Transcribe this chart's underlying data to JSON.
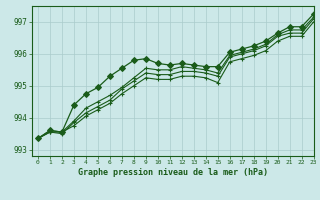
{
  "title": "Graphe pression niveau de la mer (hPa)",
  "background_color": "#cce8e8",
  "grid_color": "#aacccc",
  "line_color": "#1a5c1a",
  "xlim": [
    -0.5,
    23
  ],
  "ylim": [
    992.8,
    997.5
  ],
  "yticks": [
    993,
    994,
    995,
    996,
    997
  ],
  "xticks": [
    0,
    1,
    2,
    3,
    4,
    5,
    6,
    7,
    8,
    9,
    10,
    11,
    12,
    13,
    14,
    15,
    16,
    17,
    18,
    19,
    20,
    21,
    22,
    23
  ],
  "series": [
    [
      993.35,
      993.55,
      993.55,
      993.75,
      994.05,
      994.25,
      994.45,
      994.75,
      995.0,
      995.25,
      995.2,
      995.2,
      995.3,
      995.3,
      995.25,
      995.1,
      995.75,
      995.85,
      995.95,
      996.1,
      996.4,
      996.55,
      996.55,
      997.0
    ],
    [
      993.35,
      993.55,
      993.5,
      993.85,
      994.15,
      994.35,
      994.55,
      994.9,
      995.15,
      995.4,
      995.35,
      995.35,
      995.45,
      995.45,
      995.4,
      995.3,
      995.9,
      996.0,
      996.1,
      996.25,
      996.55,
      996.65,
      996.65,
      997.1
    ],
    [
      993.35,
      993.6,
      993.55,
      993.9,
      994.3,
      994.5,
      994.7,
      994.95,
      995.25,
      995.55,
      995.5,
      995.5,
      995.6,
      995.55,
      995.5,
      995.4,
      995.95,
      996.05,
      996.15,
      996.3,
      996.6,
      996.75,
      996.75,
      997.15
    ],
    [
      993.35,
      993.6,
      993.55,
      994.4,
      994.75,
      994.95,
      995.3,
      995.55,
      995.8,
      995.85,
      995.7,
      995.65,
      995.7,
      995.65,
      995.6,
      995.6,
      996.05,
      996.15,
      996.25,
      996.4,
      996.65,
      996.85,
      996.85,
      997.25
    ]
  ],
  "marker_sizes": [
    2.5,
    2.5,
    2.5,
    3.0
  ],
  "linewidths": [
    0.8,
    0.8,
    0.8,
    0.9
  ]
}
